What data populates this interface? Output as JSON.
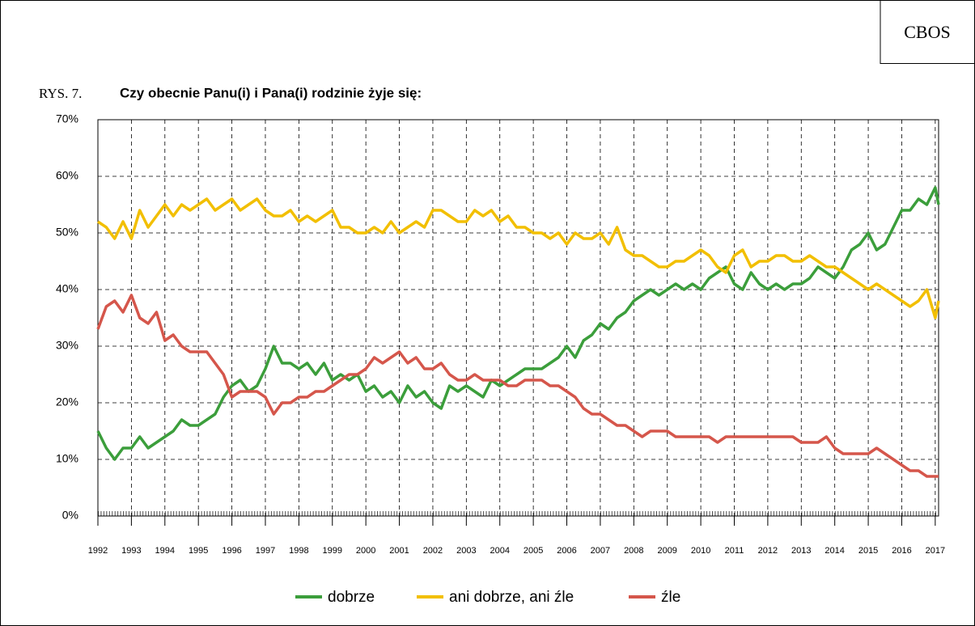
{
  "brand": "CBOS",
  "figure_label": "RYS. 7.",
  "chart_data": {
    "type": "line",
    "title": "Czy obecnie Panu(i) i Pana(i) rodzinie żyje się:",
    "x": [
      1992,
      1992.25,
      1992.5,
      1992.75,
      1993,
      1993.25,
      1993.5,
      1993.75,
      1994,
      1994.25,
      1994.5,
      1994.75,
      1995,
      1995.25,
      1995.5,
      1995.75,
      1996,
      1996.25,
      1996.5,
      1996.75,
      1997,
      1997.25,
      1997.5,
      1997.75,
      1998,
      1998.25,
      1998.5,
      1998.75,
      1999,
      1999.25,
      1999.5,
      1999.75,
      2000,
      2000.25,
      2000.5,
      2000.75,
      2001,
      2001.25,
      2001.5,
      2001.75,
      2002,
      2002.25,
      2002.5,
      2002.75,
      2003,
      2003.25,
      2003.5,
      2003.75,
      2004,
      2004.25,
      2004.5,
      2004.75,
      2005,
      2005.25,
      2005.5,
      2005.75,
      2006,
      2006.25,
      2006.5,
      2006.75,
      2007,
      2007.25,
      2007.5,
      2007.75,
      2008,
      2008.25,
      2008.5,
      2008.75,
      2009,
      2009.25,
      2009.5,
      2009.75,
      2010,
      2010.25,
      2010.5,
      2010.75,
      2011,
      2011.25,
      2011.5,
      2011.75,
      2012,
      2012.25,
      2012.5,
      2012.75,
      2013,
      2013.25,
      2013.5,
      2013.75,
      2014,
      2014.25,
      2014.5,
      2014.75,
      2015,
      2015.25,
      2015.5,
      2015.75,
      2016,
      2016.25,
      2016.5,
      2016.75,
      2017,
      2017.1
    ],
    "series": [
      {
        "name": "dobrze",
        "color": "#3b9e3b",
        "values": [
          15,
          12,
          10,
          12,
          12,
          14,
          12,
          13,
          14,
          15,
          17,
          16,
          16,
          17,
          18,
          21,
          23,
          24,
          22,
          23,
          26,
          30,
          27,
          27,
          26,
          27,
          25,
          27,
          24,
          25,
          24,
          25,
          22,
          23,
          21,
          22,
          20,
          23,
          21,
          22,
          20,
          19,
          23,
          22,
          23,
          22,
          21,
          24,
          23,
          24,
          25,
          26,
          26,
          26,
          27,
          28,
          30,
          28,
          31,
          32,
          34,
          33,
          35,
          36,
          38,
          39,
          40,
          39,
          40,
          41,
          40,
          41,
          40,
          42,
          43,
          44,
          41,
          40,
          43,
          41,
          40,
          41,
          40,
          41,
          41,
          42,
          44,
          43,
          42,
          44,
          47,
          48,
          50,
          47,
          48,
          51,
          54,
          54,
          56,
          55,
          58,
          55
        ]
      },
      {
        "name": "ani dobrze, ani źle",
        "color": "#f2bf00",
        "values": [
          52,
          51,
          49,
          52,
          49,
          54,
          51,
          53,
          55,
          53,
          55,
          54,
          55,
          56,
          54,
          55,
          56,
          54,
          55,
          56,
          54,
          53,
          53,
          54,
          52,
          53,
          52,
          53,
          54,
          51,
          51,
          50,
          50,
          51,
          50,
          52,
          50,
          51,
          52,
          51,
          54,
          54,
          53,
          52,
          52,
          54,
          53,
          54,
          52,
          53,
          51,
          51,
          50,
          50,
          49,
          50,
          48,
          50,
          49,
          49,
          50,
          48,
          51,
          47,
          46,
          46,
          45,
          44,
          44,
          45,
          45,
          46,
          47,
          46,
          44,
          43,
          46,
          47,
          44,
          45,
          45,
          46,
          46,
          45,
          45,
          46,
          45,
          44,
          44,
          43,
          42,
          41,
          40,
          41,
          40,
          39,
          38,
          37,
          38,
          40,
          35,
          38
        ]
      },
      {
        "name": "źle",
        "color": "#d5564b",
        "values": [
          33,
          37,
          38,
          36,
          39,
          35,
          34,
          36,
          31,
          32,
          30,
          29,
          29,
          29,
          27,
          25,
          21,
          22,
          22,
          22,
          21,
          18,
          20,
          20,
          21,
          21,
          22,
          22,
          23,
          24,
          25,
          25,
          26,
          28,
          27,
          28,
          29,
          27,
          28,
          26,
          26,
          27,
          25,
          24,
          24,
          25,
          24,
          24,
          24,
          23,
          23,
          24,
          24,
          24,
          23,
          23,
          22,
          21,
          19,
          18,
          18,
          17,
          16,
          16,
          15,
          14,
          15,
          15,
          15,
          14,
          14,
          14,
          14,
          14,
          13,
          14,
          14,
          14,
          14,
          14,
          14,
          14,
          14,
          14,
          13,
          13,
          13,
          14,
          12,
          11,
          11,
          11,
          11,
          12,
          11,
          10,
          9,
          8,
          8,
          7,
          7,
          7
        ]
      }
    ],
    "xlim": [
      1992,
      2017.1
    ],
    "xticks": [
      1992,
      1993,
      1994,
      1995,
      1996,
      1997,
      1998,
      1999,
      2000,
      2001,
      2002,
      2003,
      2004,
      2005,
      2006,
      2007,
      2008,
      2009,
      2010,
      2011,
      2012,
      2013,
      2014,
      2015,
      2016,
      2017
    ],
    "ylim": [
      0,
      70
    ],
    "yticks": [
      {
        "value": 0,
        "label": "0%"
      },
      {
        "value": 10,
        "label": "10%"
      },
      {
        "value": 20,
        "label": "20%"
      },
      {
        "value": 30,
        "label": "30%"
      },
      {
        "value": 40,
        "label": "40%"
      },
      {
        "value": 50,
        "label": "50%"
      },
      {
        "value": 60,
        "label": "60%"
      },
      {
        "value": 70,
        "label": "70%"
      }
    ],
    "grid": true,
    "legend": "bottom"
  }
}
